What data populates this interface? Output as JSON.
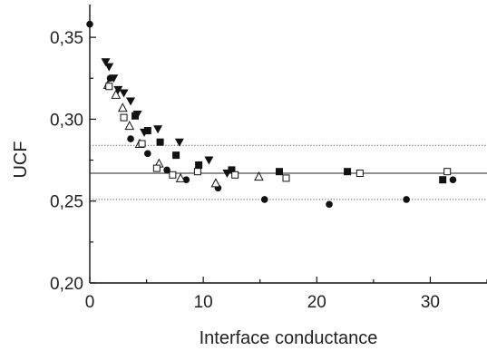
{
  "chart_data": {
    "type": "scatter",
    "title": "",
    "xlabel": "Interface conductance",
    "ylabel": "UCF",
    "xlim": [
      0,
      35
    ],
    "ylim": [
      0.2,
      0.37
    ],
    "x_ticks": [
      0,
      10,
      20,
      30
    ],
    "x_tick_labels": [
      "0",
      "10",
      "20",
      "30"
    ],
    "y_ticks": [
      0.2,
      0.25,
      0.3,
      0.35
    ],
    "y_tick_labels": [
      "0,20",
      "0,25",
      "0,30",
      "0,35"
    ],
    "grid": false,
    "legend": "none",
    "colors": {
      "ink": "#111111",
      "reference": "#222222",
      "band": "#555555"
    },
    "reference_lines": [
      {
        "y": 0.267,
        "style": "solid"
      },
      {
        "y": 0.284,
        "style": "dotted"
      },
      {
        "y": 0.251,
        "style": "dotted"
      }
    ],
    "series": [
      {
        "marker": "filled-circle",
        "x": [
          0,
          1.8,
          3.6,
          5.1,
          6.8,
          8.5,
          11.3,
          15.4,
          21.1,
          27.9,
          32
        ],
        "y": [
          0.358,
          0.325,
          0.288,
          0.279,
          0.269,
          0.263,
          0.258,
          0.251,
          0.248,
          0.251,
          0.263
        ]
      },
      {
        "marker": "filled-triangle-down",
        "x": [
          1.4,
          1.7,
          2.1,
          2.5,
          3.0,
          3.6,
          4.2,
          4.8,
          6.0,
          7.9,
          10.5,
          12.1
        ],
        "y": [
          0.335,
          0.332,
          0.325,
          0.318,
          0.316,
          0.311,
          0.303,
          0.292,
          0.294,
          0.286,
          0.275,
          0.267
        ]
      },
      {
        "marker": "open-triangle-up",
        "x": [
          1.6,
          2.3,
          2.9,
          3.5,
          4.4,
          6.1,
          8.0,
          11.1,
          14.9
        ],
        "y": [
          0.321,
          0.315,
          0.307,
          0.296,
          0.285,
          0.273,
          0.264,
          0.261,
          0.265
        ]
      },
      {
        "marker": "filled-square",
        "x": [
          4.0,
          5.1,
          6.2,
          7.6,
          9.6,
          12.5,
          16.7,
          22.7,
          31.1
        ],
        "y": [
          0.302,
          0.293,
          0.286,
          0.278,
          0.272,
          0.269,
          0.268,
          0.268,
          0.263
        ]
      },
      {
        "marker": "open-square",
        "x": [
          1.7,
          3.0,
          4.6,
          5.9,
          7.3,
          9.5,
          12.8,
          17.3,
          23.8,
          31.5
        ],
        "y": [
          0.32,
          0.301,
          0.285,
          0.27,
          0.266,
          0.268,
          0.266,
          0.264,
          0.267,
          0.268
        ]
      }
    ]
  }
}
